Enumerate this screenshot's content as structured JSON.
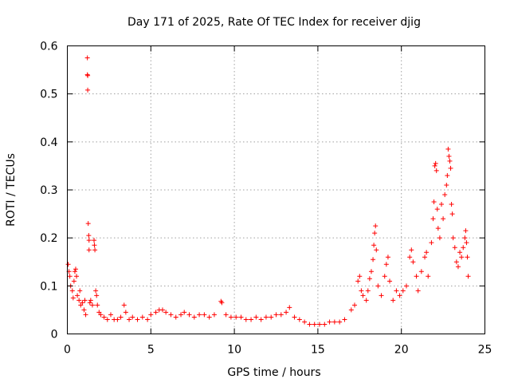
{
  "chart_data": {
    "type": "scatter",
    "title": "Day 171 of 2025, Rate Of TEC Index for receiver djig",
    "xlabel": "GPS time / hours",
    "ylabel": "ROTI / TECUs",
    "xlim": [
      0,
      25
    ],
    "ylim": [
      0,
      0.6
    ],
    "x_ticks": [
      0,
      5,
      10,
      15,
      20,
      25
    ],
    "x_tick_labels": [
      "0",
      "5",
      "10",
      "15",
      "20",
      "25"
    ],
    "y_ticks": [
      0,
      0.1,
      0.2,
      0.3,
      0.4,
      0.5,
      0.6
    ],
    "y_tick_labels": [
      "0",
      "0.1",
      "0.2",
      "0.3",
      "0.4",
      "0.5",
      "0.6"
    ],
    "grid": true,
    "marker": "plus",
    "color": "#ff0000",
    "series": [
      {
        "points": [
          [
            0.05,
            0.145
          ],
          [
            0.1,
            0.13
          ],
          [
            0.15,
            0.12
          ],
          [
            0.2,
            0.1
          ],
          [
            0.3,
            0.09
          ],
          [
            0.35,
            0.075
          ],
          [
            0.4,
            0.11
          ],
          [
            0.45,
            0.13
          ],
          [
            0.5,
            0.135
          ],
          [
            0.55,
            0.12
          ],
          [
            0.6,
            0.08
          ],
          [
            0.7,
            0.07
          ],
          [
            0.75,
            0.09
          ],
          [
            0.8,
            0.06
          ],
          [
            0.9,
            0.065
          ],
          [
            1.0,
            0.05
          ],
          [
            1.05,
            0.07
          ],
          [
            1.1,
            0.04
          ],
          [
            1.2,
            0.575
          ],
          [
            1.2,
            0.54
          ],
          [
            1.22,
            0.538
          ],
          [
            1.22,
            0.508
          ],
          [
            1.25,
            0.23
          ],
          [
            1.28,
            0.205
          ],
          [
            1.3,
            0.195
          ],
          [
            1.3,
            0.175
          ],
          [
            1.35,
            0.065
          ],
          [
            1.4,
            0.07
          ],
          [
            1.5,
            0.06
          ],
          [
            1.6,
            0.195
          ],
          [
            1.62,
            0.185
          ],
          [
            1.65,
            0.175
          ],
          [
            1.7,
            0.09
          ],
          [
            1.75,
            0.08
          ],
          [
            1.8,
            0.06
          ],
          [
            1.9,
            0.045
          ],
          [
            2.0,
            0.04
          ],
          [
            2.2,
            0.035
          ],
          [
            2.4,
            0.03
          ],
          [
            2.6,
            0.04
          ],
          [
            2.8,
            0.03
          ],
          [
            3.0,
            0.03
          ],
          [
            3.2,
            0.035
          ],
          [
            3.4,
            0.06
          ],
          [
            3.5,
            0.045
          ],
          [
            3.7,
            0.03
          ],
          [
            3.9,
            0.035
          ],
          [
            4.2,
            0.03
          ],
          [
            4.5,
            0.035
          ],
          [
            4.8,
            0.03
          ],
          [
            5.0,
            0.04
          ],
          [
            5.3,
            0.045
          ],
          [
            5.5,
            0.05
          ],
          [
            5.7,
            0.05
          ],
          [
            5.9,
            0.045
          ],
          [
            6.2,
            0.04
          ],
          [
            6.5,
            0.035
          ],
          [
            6.8,
            0.04
          ],
          [
            7.0,
            0.045
          ],
          [
            7.3,
            0.04
          ],
          [
            7.6,
            0.035
          ],
          [
            7.9,
            0.04
          ],
          [
            8.2,
            0.04
          ],
          [
            8.5,
            0.035
          ],
          [
            8.8,
            0.04
          ],
          [
            9.2,
            0.068
          ],
          [
            9.25,
            0.065
          ],
          [
            9.5,
            0.04
          ],
          [
            9.8,
            0.035
          ],
          [
            10.1,
            0.035
          ],
          [
            10.4,
            0.035
          ],
          [
            10.7,
            0.03
          ],
          [
            11.0,
            0.03
          ],
          [
            11.3,
            0.035
          ],
          [
            11.6,
            0.03
          ],
          [
            11.9,
            0.035
          ],
          [
            12.2,
            0.035
          ],
          [
            12.5,
            0.04
          ],
          [
            12.8,
            0.04
          ],
          [
            13.1,
            0.045
          ],
          [
            13.3,
            0.055
          ],
          [
            13.6,
            0.035
          ],
          [
            13.9,
            0.03
          ],
          [
            14.2,
            0.025
          ],
          [
            14.5,
            0.02
          ],
          [
            14.8,
            0.02
          ],
          [
            15.1,
            0.02
          ],
          [
            15.4,
            0.02
          ],
          [
            15.7,
            0.025
          ],
          [
            16.0,
            0.025
          ],
          [
            16.3,
            0.025
          ],
          [
            16.6,
            0.03
          ],
          [
            17.0,
            0.05
          ],
          [
            17.2,
            0.06
          ],
          [
            17.4,
            0.11
          ],
          [
            17.5,
            0.12
          ],
          [
            17.6,
            0.09
          ],
          [
            17.7,
            0.08
          ],
          [
            17.9,
            0.07
          ],
          [
            18.0,
            0.09
          ],
          [
            18.1,
            0.115
          ],
          [
            18.2,
            0.13
          ],
          [
            18.3,
            0.155
          ],
          [
            18.35,
            0.185
          ],
          [
            18.4,
            0.21
          ],
          [
            18.45,
            0.225
          ],
          [
            18.5,
            0.175
          ],
          [
            18.6,
            0.1
          ],
          [
            18.8,
            0.08
          ],
          [
            19.0,
            0.12
          ],
          [
            19.1,
            0.145
          ],
          [
            19.2,
            0.16
          ],
          [
            19.3,
            0.11
          ],
          [
            19.5,
            0.07
          ],
          [
            19.7,
            0.09
          ],
          [
            19.9,
            0.08
          ],
          [
            20.1,
            0.09
          ],
          [
            20.3,
            0.1
          ],
          [
            20.5,
            0.16
          ],
          [
            20.6,
            0.175
          ],
          [
            20.7,
            0.15
          ],
          [
            20.9,
            0.12
          ],
          [
            21.0,
            0.09
          ],
          [
            21.2,
            0.13
          ],
          [
            21.4,
            0.16
          ],
          [
            21.5,
            0.17
          ],
          [
            21.6,
            0.12
          ],
          [
            21.8,
            0.19
          ],
          [
            21.9,
            0.24
          ],
          [
            21.95,
            0.275
          ],
          [
            22.0,
            0.35
          ],
          [
            22.05,
            0.355
          ],
          [
            22.1,
            0.34
          ],
          [
            22.15,
            0.26
          ],
          [
            22.2,
            0.22
          ],
          [
            22.3,
            0.2
          ],
          [
            22.4,
            0.27
          ],
          [
            22.5,
            0.24
          ],
          [
            22.6,
            0.29
          ],
          [
            22.7,
            0.31
          ],
          [
            22.75,
            0.33
          ],
          [
            22.8,
            0.385
          ],
          [
            22.85,
            0.37
          ],
          [
            22.9,
            0.36
          ],
          [
            22.95,
            0.345
          ],
          [
            23.0,
            0.27
          ],
          [
            23.05,
            0.25
          ],
          [
            23.1,
            0.2
          ],
          [
            23.2,
            0.18
          ],
          [
            23.3,
            0.15
          ],
          [
            23.4,
            0.14
          ],
          [
            23.5,
            0.17
          ],
          [
            23.6,
            0.16
          ],
          [
            23.7,
            0.18
          ],
          [
            23.8,
            0.2
          ],
          [
            23.85,
            0.215
          ],
          [
            23.9,
            0.19
          ],
          [
            23.95,
            0.16
          ],
          [
            24.0,
            0.12
          ]
        ]
      }
    ]
  }
}
